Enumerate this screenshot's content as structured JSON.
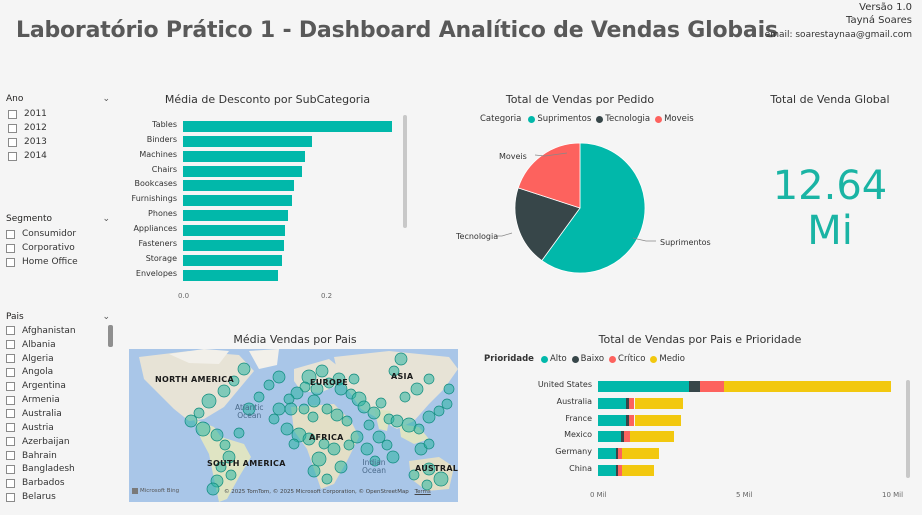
{
  "header": {
    "title": "Laboratório Prático 1 - Dashboard Analítico de Vendas Globais",
    "version": "Versão 1.0",
    "author": "Tayná Soares",
    "email": "email: soarestaynaa@gmail.com"
  },
  "slicers": {
    "ano": {
      "title": "Ano",
      "items": [
        "2011",
        "2012",
        "2013",
        "2014"
      ]
    },
    "segmento": {
      "title": "Segmento",
      "items": [
        "Consumidor",
        "Corporativo",
        "Home Office"
      ]
    },
    "pais": {
      "title": "Pais",
      "items": [
        "Afghanistan",
        "Albania",
        "Algeria",
        "Angola",
        "Argentina",
        "Armenia",
        "Australia",
        "Austria",
        "Azerbaijan",
        "Bahrain",
        "Bangladesh",
        "Barbados",
        "Belarus"
      ]
    }
  },
  "discount_chart": {
    "title": "Média de Desconto por SubCategoria",
    "ticks": [
      "0.0",
      "0.2"
    ]
  },
  "pie_chart": {
    "title": "Total de Vendas por Pedido",
    "legend_title": "Categoria",
    "labels": {
      "suprimentos": "Suprimentos",
      "tecnologia": "Tecnologia",
      "moveis": "Moveis"
    }
  },
  "kpi": {
    "title": "Total de Venda Global",
    "value_line1": "12.64",
    "value_line2": "Mi"
  },
  "map": {
    "title": "Média Vendas por Pais",
    "labels": {
      "north_america": "NORTH AMERICA",
      "south_america": "SOUTH AMERICA",
      "asia": "ASIA",
      "europe": "EUROPE",
      "africa": "AFRICA",
      "australia": "AUSTRALIA"
    },
    "oceans": {
      "atlantic1": "Atlantic",
      "atlantic2": "Ocean",
      "indian1": "Indian",
      "indian2": "Ocean"
    },
    "bing": "Microsoft Bing",
    "attribution": "© 2025 TomTom, © 2025 Microsoft Corporation, © OpenStreetMap",
    "terms": "Terms"
  },
  "stacked_chart": {
    "title": "Total de Vendas por Pais e Prioridade",
    "legend_title": "Prioridade",
    "ticks": [
      "0 Mil",
      "5 Mil",
      "10 Mil"
    ]
  },
  "colors": {
    "teal": "#01b8aa",
    "dark": "#374649",
    "red": "#fd625e",
    "yellow": "#f2c80f",
    "kpi": "#1ab4a4"
  },
  "chart_data": [
    {
      "type": "bar",
      "title": "Média de Desconto por SubCategoria",
      "categories": [
        "Tables",
        "Binders",
        "Machines",
        "Chairs",
        "Bookcases",
        "Furnishings",
        "Phones",
        "Appliances",
        "Fasteners",
        "Storage",
        "Envelopes"
      ],
      "values": [
        0.294,
        0.181,
        0.172,
        0.168,
        0.156,
        0.153,
        0.148,
        0.143,
        0.142,
        0.14,
        0.134
      ],
      "xlim": [
        0,
        0.3
      ]
    },
    {
      "type": "pie",
      "title": "Total de Vendas por Pedido",
      "categories": [
        "Suprimentos",
        "Tecnologia",
        "Moveis"
      ],
      "values": [
        60,
        20,
        20
      ]
    },
    {
      "type": "bar",
      "title": "Total de Vendas por Pais e Prioridade",
      "categories": [
        "United States",
        "Australia",
        "France",
        "Mexico",
        "Germany",
        "China"
      ],
      "series": [
        {
          "name": "Alto",
          "values": [
            3.1,
            0.95,
            0.95,
            0.8,
            0.6,
            0.6
          ]
        },
        {
          "name": "Baixo",
          "values": [
            0.4,
            0.1,
            0.1,
            0.1,
            0.08,
            0.08
          ]
        },
        {
          "name": "Crítico",
          "values": [
            0.8,
            0.2,
            0.2,
            0.2,
            0.15,
            0.15
          ]
        },
        {
          "name": "Medio",
          "values": [
            5.75,
            1.65,
            1.6,
            1.5,
            1.25,
            1.1
          ]
        }
      ],
      "xlim": [
        0,
        10
      ]
    }
  ]
}
